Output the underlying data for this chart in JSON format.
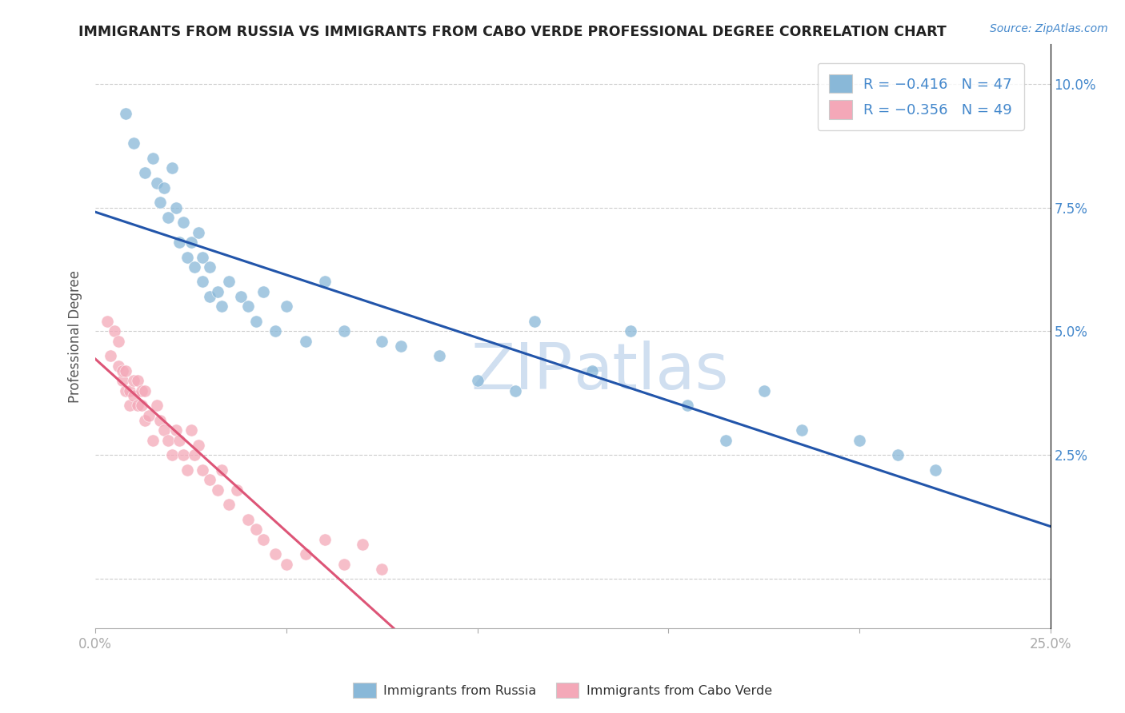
{
  "title": "IMMIGRANTS FROM RUSSIA VS IMMIGRANTS FROM CABO VERDE PROFESSIONAL DEGREE CORRELATION CHART",
  "source": "Source: ZipAtlas.com",
  "ylabel": "Professional Degree",
  "ytick_labels": [
    "",
    "2.5%",
    "5.0%",
    "7.5%",
    "10.0%"
  ],
  "ytick_values": [
    0.0,
    0.025,
    0.05,
    0.075,
    0.1
  ],
  "xlim": [
    0.0,
    0.25
  ],
  "ylim": [
    -0.01,
    0.108
  ],
  "russia_color": "#89b8d8",
  "cabo_color": "#f4a8b8",
  "russia_line_color": "#2255aa",
  "cabo_line_color": "#dd5577",
  "watermark_color": "#d0dff0",
  "background_color": "#ffffff",
  "russia_x": [
    0.008,
    0.01,
    0.013,
    0.015,
    0.016,
    0.017,
    0.018,
    0.019,
    0.02,
    0.021,
    0.022,
    0.023,
    0.024,
    0.025,
    0.026,
    0.027,
    0.028,
    0.028,
    0.03,
    0.03,
    0.032,
    0.033,
    0.035,
    0.038,
    0.04,
    0.042,
    0.044,
    0.047,
    0.05,
    0.055,
    0.06,
    0.065,
    0.075,
    0.08,
    0.09,
    0.1,
    0.11,
    0.115,
    0.13,
    0.14,
    0.155,
    0.165,
    0.175,
    0.185,
    0.2,
    0.21,
    0.22
  ],
  "russia_y": [
    0.094,
    0.088,
    0.082,
    0.085,
    0.08,
    0.076,
    0.079,
    0.073,
    0.083,
    0.075,
    0.068,
    0.072,
    0.065,
    0.068,
    0.063,
    0.07,
    0.065,
    0.06,
    0.063,
    0.057,
    0.058,
    0.055,
    0.06,
    0.057,
    0.055,
    0.052,
    0.058,
    0.05,
    0.055,
    0.048,
    0.06,
    0.05,
    0.048,
    0.047,
    0.045,
    0.04,
    0.038,
    0.052,
    0.042,
    0.05,
    0.035,
    0.028,
    0.038,
    0.03,
    0.028,
    0.025,
    0.022
  ],
  "cabo_x": [
    0.003,
    0.004,
    0.005,
    0.006,
    0.006,
    0.007,
    0.007,
    0.008,
    0.008,
    0.009,
    0.009,
    0.01,
    0.01,
    0.011,
    0.011,
    0.012,
    0.012,
    0.013,
    0.013,
    0.014,
    0.015,
    0.016,
    0.017,
    0.018,
    0.019,
    0.02,
    0.021,
    0.022,
    0.023,
    0.024,
    0.025,
    0.026,
    0.027,
    0.028,
    0.03,
    0.032,
    0.033,
    0.035,
    0.037,
    0.04,
    0.042,
    0.044,
    0.047,
    0.05,
    0.055,
    0.06,
    0.065,
    0.07,
    0.075
  ],
  "cabo_y": [
    0.052,
    0.045,
    0.05,
    0.048,
    0.043,
    0.04,
    0.042,
    0.038,
    0.042,
    0.038,
    0.035,
    0.04,
    0.037,
    0.035,
    0.04,
    0.038,
    0.035,
    0.032,
    0.038,
    0.033,
    0.028,
    0.035,
    0.032,
    0.03,
    0.028,
    0.025,
    0.03,
    0.028,
    0.025,
    0.022,
    0.03,
    0.025,
    0.027,
    0.022,
    0.02,
    0.018,
    0.022,
    0.015,
    0.018,
    0.012,
    0.01,
    0.008,
    0.005,
    0.003,
    0.005,
    0.008,
    0.003,
    0.007,
    0.002
  ]
}
